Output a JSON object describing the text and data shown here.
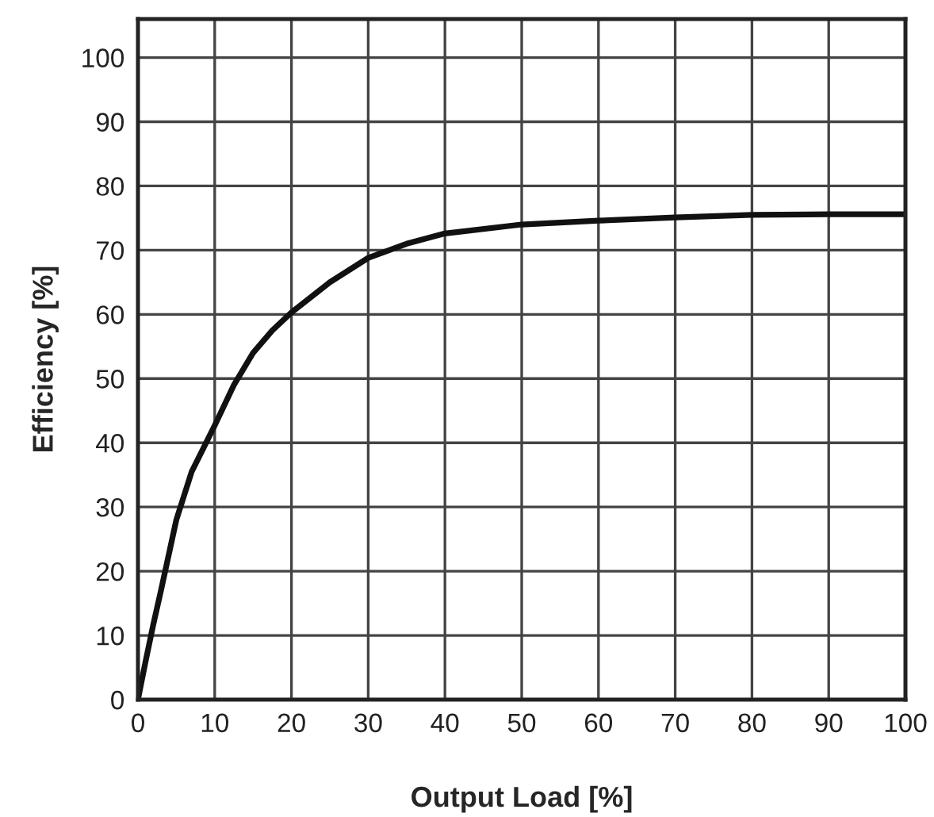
{
  "chart_data": {
    "type": "line",
    "xlabel": "Output Load [%]",
    "ylabel": "Efficiency [%]",
    "x": [
      0,
      1,
      2,
      3,
      5,
      7,
      10,
      12.5,
      15,
      17.5,
      20,
      25,
      30,
      35,
      40,
      50,
      60,
      70,
      80,
      90,
      100
    ],
    "series": [
      {
        "color": "#111111",
        "values": [
          0,
          6,
          11.7,
          17,
          28,
          35.5,
          42.7,
          49,
          54,
          57.5,
          60.3,
          65,
          68.8,
          71,
          72.6,
          74,
          74.6,
          75.1,
          75.5,
          75.6,
          75.6
        ]
      }
    ],
    "xlim": [
      0,
      100
    ],
    "ylim": [
      0,
      106
    ],
    "xticks": [
      0,
      10,
      20,
      30,
      40,
      50,
      60,
      70,
      80,
      90,
      100
    ],
    "yticks": [
      0,
      10,
      20,
      30,
      40,
      50,
      60,
      70,
      80,
      90,
      100
    ],
    "grid": true,
    "marker": "none",
    "line_style": "solid"
  }
}
